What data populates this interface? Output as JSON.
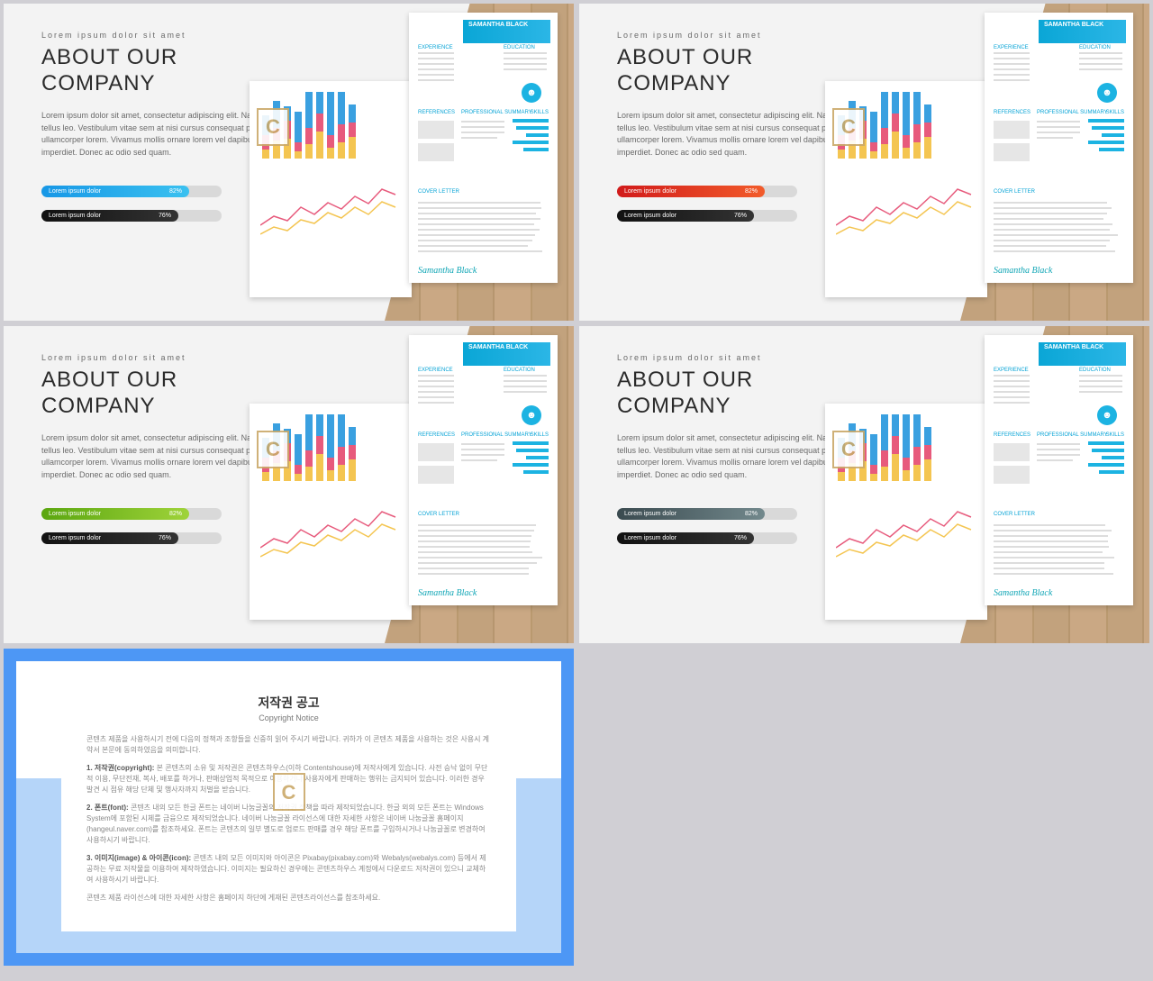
{
  "slides": [
    {
      "accent_start": "#1797e6",
      "accent_end": "#3ac1f0"
    },
    {
      "accent_start": "#d11a1a",
      "accent_end": "#f25b2a"
    },
    {
      "accent_start": "#5aa60f",
      "accent_end": "#9fd33a"
    },
    {
      "accent_start": "#3a4a4f",
      "accent_end": "#72888c"
    }
  ],
  "common": {
    "eyebrow": "Lorem ipsum dolor sit amet",
    "title_l1": "ABOUT OUR",
    "title_l2": "COMPANY",
    "body": "Lorem ipsum dolor sit amet, consectetur adipiscing elit. Nam eu tellus leo. Vestibulum vitae sem at nisi cursus consequat placerat ullamcorper lorem. Vivamus mollis ornare lorem vel dapibus imperdiet. Donec ac odio sed quam.",
    "bar1_label": "Lorem ipsum dolor",
    "bar1_pct": "82%",
    "bar1_width": 82,
    "bar2_label": "Lorem ipsum dolor",
    "bar2_pct": "76%",
    "bar2_width": 76,
    "bar2_start": "#111111",
    "bar2_end": "#333333"
  },
  "resume": {
    "name": "SAMANTHA BLACK",
    "h_exp": "EXPERIENCE",
    "h_edu": "EDUCATION",
    "h_ref": "REFERENCES",
    "h_prof": "PROFESSIONAL SUMMARY",
    "h_skill": "SKILLS",
    "h_cover": "COVER LETTER",
    "sig": "Samantha Black",
    "skill_vals": [
      90,
      80,
      55,
      88,
      62
    ],
    "skill_color": "#1cb3e2"
  },
  "chart": {
    "bars": [
      {
        "s1": 22,
        "s2": 16,
        "s3": 10
      },
      {
        "s1": 30,
        "s2": 14,
        "s3": 20
      },
      {
        "s1": 16,
        "s2": 20,
        "s3": 22
      },
      {
        "s1": 34,
        "s2": 10,
        "s3": 8
      },
      {
        "s1": 40,
        "s2": 18,
        "s3": 16
      },
      {
        "s1": 24,
        "s2": 20,
        "s3": 30
      },
      {
        "s1": 48,
        "s2": 14,
        "s3": 12
      },
      {
        "s1": 36,
        "s2": 20,
        "s3": 18
      },
      {
        "s1": 20,
        "s2": 16,
        "s3": 24
      }
    ],
    "line_series1": "0,60 15,50 30,55 45,40 60,48 75,35 90,42 105,28 120,36 135,20 150,26",
    "line_series2": "0,70 15,62 30,66 45,54 60,58 75,46 90,52 105,40 120,48 135,34 150,40",
    "line1_color": "#e75a7c",
    "line2_color": "#f4c551"
  },
  "notice": {
    "title": "저작권 공고",
    "sub": "Copyright Notice",
    "p0": "콘텐츠 제품을 사용하시기 전에 다음의 정책과 조항들을 신중히 읽어 주시기 바랍니다. 귀하가 이 콘텐츠 제품을 사용하는 것은 사용시 계약서 본문에 동의하였음을 의미합니다.",
    "h1": "1. 저작권(copyright):",
    "p1": "본 콘텐츠의 소유 및 저작권은 콘텐츠하우스(이하 Contentshouse)에 저작사에게 있습니다. 사전 승낙 없이 무단적 이용, 무단전재, 복사, 배포를 하거나, 판매상업적 목적으로 이용하거나 사용자에게 판매하는 행위는 금지되어 있습니다. 이러한 경우 발견 시 점유 해당 단체 및 행사자까지 처벌을 받습니다.",
    "h2": "2. 폰트(font):",
    "p2": "콘텐츠 내의 모든 한글 폰트는 네이버 나눔글꼴의 저작권 정책을 따라 제작되었습니다. 한글 외의 모든 폰트는 Windows System에 포함된 시체를 금융으로 제작되었습니다. 네이버 나눔글꼴 라이선스에 대한 자세한 사항은 네이버 나눔글꼴 홈페이지(hangeul.naver.com)를 참조하세요. 폰트는 콘텐츠의 일부 별도로 업로드 판매를 경우 해당 폰트를 구입하시거나 나눔글꼴로 변경하여 사용하시기 바랍니다.",
    "h3": "3. 이미지(image) & 아이콘(icon):",
    "p3": "콘텐츠 내의 모든 이미지와 아이콘은 Pixabay(pixabay.com)와 Webalys(webalys.com) 등에서 제공하는 무료 저작물을 이용하여 제작하였습니다. 이미지는 필요하신 경우에는 콘텐츠하우스 계정에서 다운로드 저작권이 있으니 교체하여 사용하시기 바랍니다.",
    "p4": "콘텐츠 제품 라이선스에 대한 자세한 사항은 홈페이지 하단에 게재된 콘텐츠라이선스를 참조하세요."
  },
  "watermark": "C"
}
